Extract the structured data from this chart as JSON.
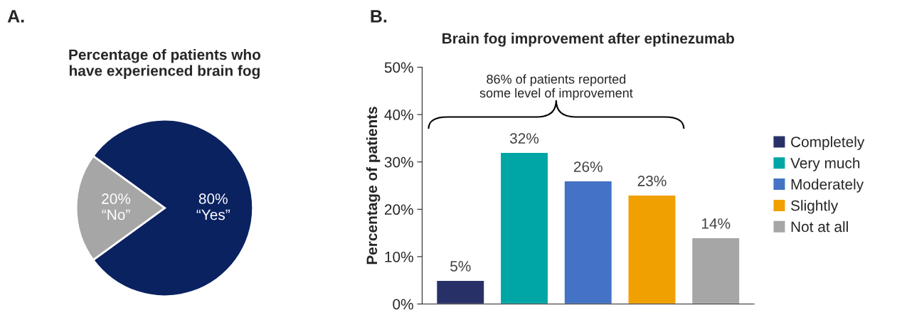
{
  "chart_data": [
    {
      "type": "pie",
      "title": "Percentage of patients who\nhave experienced brain fog",
      "annotations": [
        "A."
      ],
      "categories": [
        "“Yes”",
        "“No”"
      ],
      "values": [
        80,
        20
      ],
      "value_labels": [
        "80%",
        "20%"
      ],
      "colors": [
        "#0b2260",
        "#a6a6a6"
      ]
    },
    {
      "type": "bar",
      "title": "Brain fog improvement after eptinezumab",
      "ylabel": "Percentage of patients",
      "annotations": [
        "B.",
        "86% of patients reported\nsome level of improvement"
      ],
      "categories": [
        null,
        null,
        null,
        null,
        null
      ],
      "stacked": true,
      "series": [
        {
          "name": "Completely",
          "color": "#283068",
          "values": [
            5,
            null,
            null,
            null,
            null
          ],
          "value_labels": [
            "5%",
            null,
            null,
            null,
            null
          ]
        },
        {
          "name": "Very much",
          "color": "#00a6a6",
          "values": [
            null,
            32,
            null,
            null,
            null
          ],
          "value_labels": [
            null,
            "32%",
            null,
            null,
            null
          ]
        },
        {
          "name": "Moderately",
          "color": "#4472c4",
          "values": [
            null,
            null,
            26,
            null,
            null
          ],
          "value_labels": [
            null,
            null,
            "26%",
            null,
            null
          ]
        },
        {
          "name": "Slightly",
          "color": "#f0a000",
          "values": [
            null,
            null,
            null,
            23,
            null
          ],
          "value_labels": [
            null,
            null,
            null,
            "23%",
            null
          ]
        },
        {
          "name": "Not at all",
          "color": "#a6a6a6",
          "values": [
            null,
            null,
            null,
            null,
            14
          ],
          "value_labels": [
            null,
            null,
            null,
            null,
            "14%"
          ]
        }
      ],
      "ylim": [
        0,
        50
      ],
      "yticks": [
        {
          "value": 0,
          "label": "0%"
        },
        {
          "value": 10,
          "label": "10%"
        },
        {
          "value": 20,
          "label": "20%"
        },
        {
          "value": 30,
          "label": "30%"
        },
        {
          "value": 40,
          "label": "40%"
        },
        {
          "value": 50,
          "label": "50%"
        }
      ],
      "legend": "right",
      "grid": false
    }
  ]
}
